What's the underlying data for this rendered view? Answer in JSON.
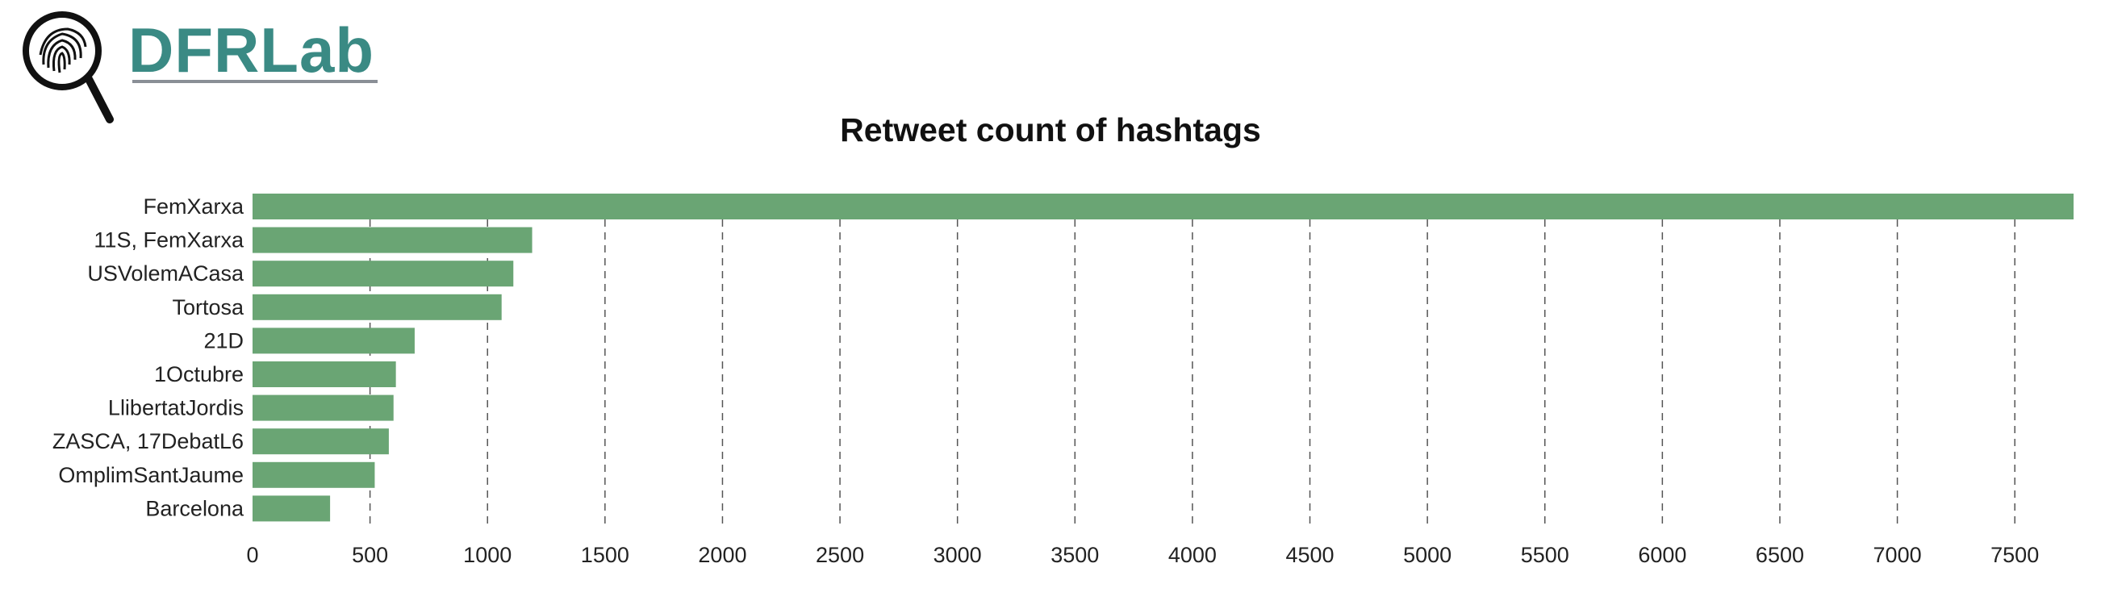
{
  "brand": {
    "logo_text": "DFRLab",
    "accent": "#3a8a84"
  },
  "chart_data": {
    "type": "bar",
    "orientation": "horizontal",
    "title": "Retweet count of hashtags",
    "xlabel": "",
    "ylabel": "",
    "categories": [
      "FemXarxa",
      "11S, FemXarxa",
      "USVolemACasa",
      "Tortosa",
      "21D",
      "1Octubre",
      "LlibertatJordis",
      "ZASCA, 17DebatL6",
      "OmplimSantJaume",
      "Barcelona"
    ],
    "values": [
      7750,
      1190,
      1110,
      1060,
      690,
      610,
      600,
      580,
      520,
      330
    ],
    "xlim": [
      0,
      7750
    ],
    "xticks": [
      0,
      500,
      1000,
      1500,
      2000,
      2500,
      3000,
      3500,
      4000,
      4500,
      5000,
      5500,
      6000,
      6500,
      7000,
      7500
    ],
    "grid": "vertical-dashed",
    "bar_color": "#6aa574"
  }
}
